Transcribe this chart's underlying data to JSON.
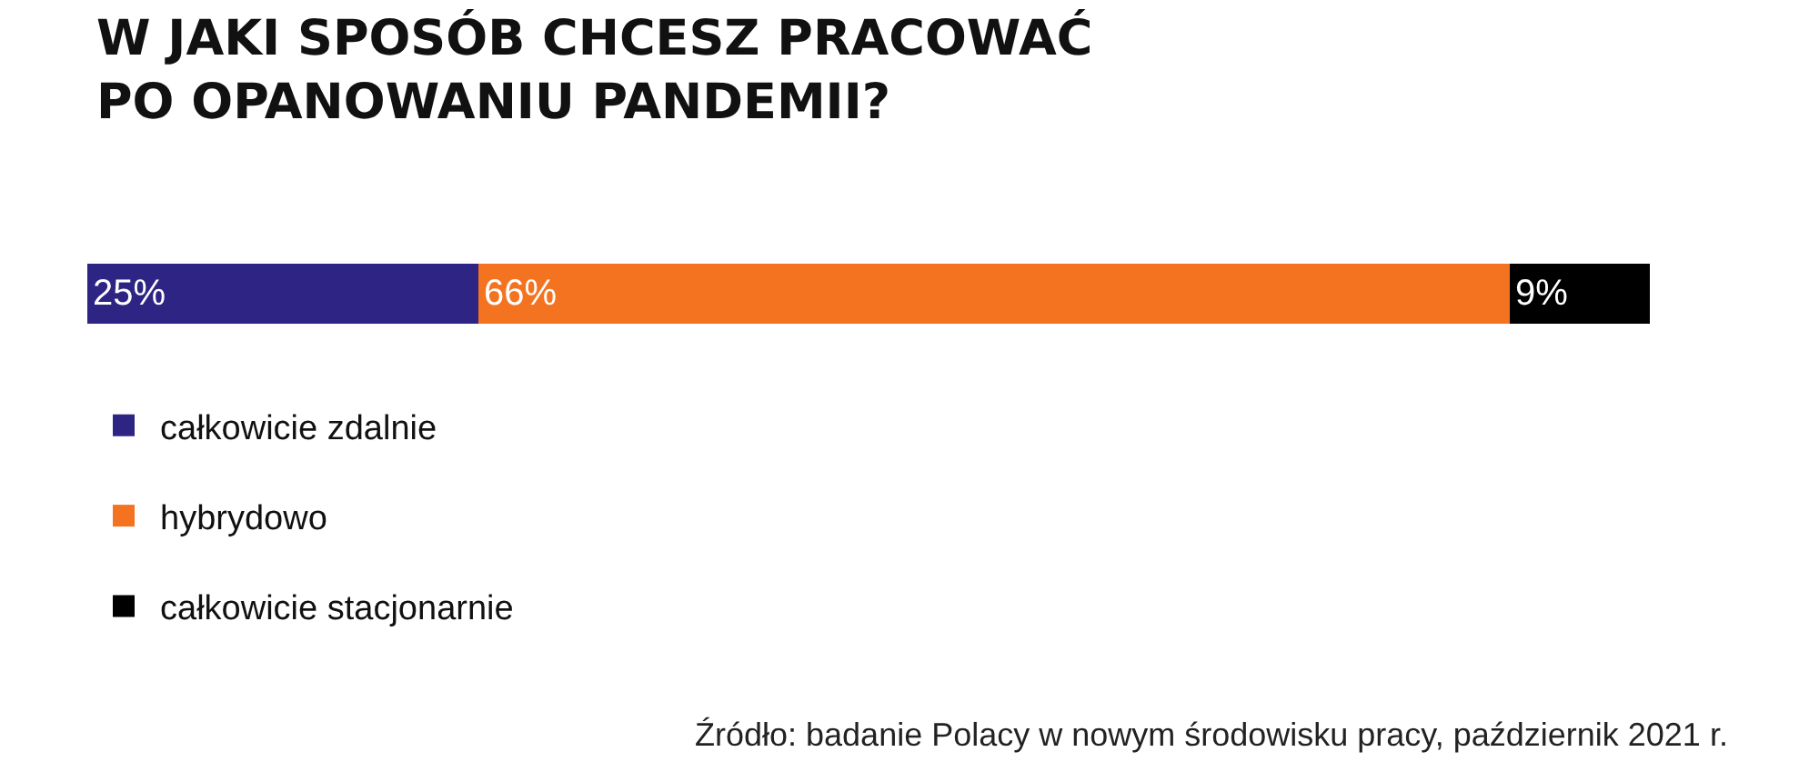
{
  "chart_data": {
    "type": "bar",
    "title": "W JAKI SPOSÓB CHCESZ PRACOWAĆ\nPO OPANOWANIU PANDEMII?",
    "orientation": "horizontal",
    "stacked": true,
    "categories": [
      null
    ],
    "legend": "bottom left",
    "series": [
      {
        "name": "całkowicie zdalnie",
        "color": "#2e2483",
        "values": [
          25
        ],
        "value_labels": [
          "25%"
        ]
      },
      {
        "name": "hybrydowo",
        "color": "#f47320",
        "values": [
          66
        ],
        "value_labels": [
          "66%"
        ]
      },
      {
        "name": "całkowicie stacjonarnie",
        "color": "#000000",
        "values": [
          9
        ],
        "value_labels": [
          "9%"
        ]
      }
    ],
    "annotations": [
      "Źródło: badanie Polacy w nowym środowisku pracy, październik 2021 r."
    ]
  }
}
